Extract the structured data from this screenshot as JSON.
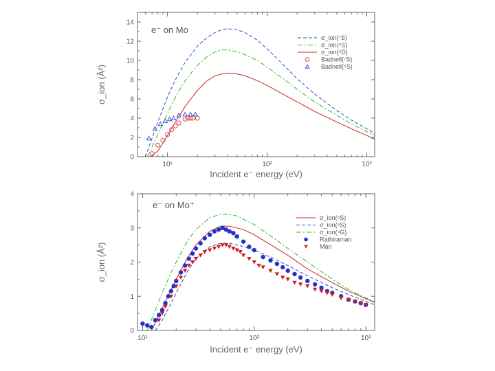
{
  "chart_data": [
    {
      "type": "line",
      "title": "e⁻ on Mo",
      "xlabel": "Incident e⁻ energy (eV)",
      "ylabel": "σ_ion (Å²)",
      "xscale": "log",
      "xlim": [
        5,
        1200
      ],
      "ylim": [
        0,
        15
      ],
      "yticks": [
        0,
        2,
        4,
        6,
        8,
        10,
        12,
        14
      ],
      "ytick_labels": [
        "0",
        "2",
        "4",
        "6",
        "8",
        "10",
        "12",
        "14"
      ],
      "xticks": [
        10,
        100,
        1000
      ],
      "xtick_labels": [
        "10¹",
        "10²",
        "10³"
      ],
      "legend_position": "top-right",
      "series": [
        {
          "name": "σ_ion(⁷S)",
          "style": "dash",
          "color": "#3344cc",
          "x": [
            6,
            7,
            8,
            9,
            10,
            12,
            15,
            20,
            25,
            30,
            35,
            40,
            50,
            60,
            80,
            100,
            150,
            200,
            300,
            500,
            700,
            1000,
            1200
          ],
          "y": [
            0,
            1.9,
            3.6,
            5.0,
            6.2,
            8.0,
            9.8,
            11.5,
            12.4,
            12.9,
            13.2,
            13.3,
            13.2,
            12.9,
            12.1,
            11.2,
            9.4,
            8.1,
            6.5,
            4.8,
            3.8,
            2.9,
            2.4
          ]
        },
        {
          "name": "σ_ion(⁵S)",
          "style": "dashdot",
          "color": "#22bb22",
          "x": [
            6.3,
            7,
            8,
            9,
            10,
            12,
            15,
            20,
            25,
            30,
            35,
            40,
            50,
            60,
            80,
            100,
            150,
            200,
            300,
            500,
            700,
            1000,
            1200
          ],
          "y": [
            0,
            1.0,
            2.3,
            3.5,
            4.5,
            6.2,
            7.9,
            9.5,
            10.4,
            10.9,
            11.1,
            11.1,
            10.9,
            10.6,
            10.0,
            9.3,
            8.0,
            7.0,
            5.7,
            4.3,
            3.4,
            2.6,
            2.2
          ]
        },
        {
          "name": "σ_ion(⁵D)",
          "style": "solid",
          "color": "#cc2222",
          "x": [
            6.8,
            8,
            9,
            10,
            12,
            15,
            20,
            25,
            30,
            35,
            40,
            50,
            60,
            80,
            100,
            150,
            200,
            300,
            500,
            700,
            1000,
            1200
          ],
          "y": [
            0,
            0.6,
            1.4,
            2.2,
            3.6,
            5.2,
            6.9,
            7.9,
            8.4,
            8.6,
            8.7,
            8.6,
            8.4,
            7.9,
            7.4,
            6.4,
            5.7,
            4.7,
            3.6,
            2.9,
            2.2,
            1.8
          ]
        },
        {
          "name": "Badnell(⁷S)",
          "style": "marker-circle",
          "color": "#dd4444",
          "x": [
            7,
            8,
            9,
            10,
            11,
            12,
            13,
            15,
            16,
            17,
            18,
            20
          ],
          "y": [
            0.3,
            1.2,
            1.7,
            2.3,
            2.8,
            3.2,
            3.5,
            3.9,
            4.0,
            4.0,
            4.0,
            4.0
          ]
        },
        {
          "name": "Badnell(⁵S)",
          "style": "marker-triangle",
          "color": "#4455cc",
          "x": [
            6.5,
            7.5,
            8.5,
            9.5,
            10.5,
            11.5,
            13,
            15,
            17,
            19
          ],
          "y": [
            1.9,
            2.9,
            3.4,
            3.7,
            3.9,
            4.0,
            4.3,
            4.4,
            4.4,
            4.4
          ]
        }
      ]
    },
    {
      "type": "line",
      "title": "e⁻ on Mo⁺",
      "xlabel": "Incident e⁻ energy (eV)",
      "ylabel": "σ_ion (Å²)",
      "xscale": "log",
      "xlim": [
        9,
        1200
      ],
      "ylim": [
        0,
        4
      ],
      "yticks": [
        0,
        1,
        2,
        3,
        4
      ],
      "ytick_labels": [
        "0",
        "1",
        "2",
        "3",
        "4"
      ],
      "xticks": [
        10,
        100,
        1000
      ],
      "xtick_labels": [
        "10¹",
        "10²",
        "10³"
      ],
      "legend_position": "top-right",
      "series": [
        {
          "name": "σ_ion(⁶S)",
          "style": "solid",
          "color": "#cc2222",
          "x": [
            12,
            14,
            16,
            18,
            20,
            25,
            30,
            40,
            50,
            60,
            70,
            80,
            100,
            150,
            200,
            300,
            500,
            700,
            1000,
            1200
          ],
          "y": [
            0,
            0.45,
            0.85,
            1.2,
            1.5,
            2.1,
            2.5,
            2.9,
            3.05,
            3.05,
            3.0,
            2.95,
            2.8,
            2.45,
            2.2,
            1.8,
            1.4,
            1.15,
            0.93,
            0.82
          ]
        },
        {
          "name": "σ_ion(⁸S)",
          "style": "dash",
          "color": "#3344cc",
          "x": [
            13,
            15,
            18,
            20,
            25,
            30,
            40,
            50,
            60,
            70,
            80,
            100,
            150,
            200,
            300,
            500,
            700,
            1000,
            1200
          ],
          "y": [
            0,
            0.3,
            0.8,
            1.1,
            1.7,
            2.1,
            2.45,
            2.55,
            2.55,
            2.5,
            2.45,
            2.35,
            2.1,
            1.9,
            1.6,
            1.25,
            1.05,
            0.85,
            0.75
          ]
        },
        {
          "name": "σ_ion(⁴G)",
          "style": "dashdot",
          "color": "#22bb22",
          "x": [
            11,
            13,
            15,
            18,
            20,
            25,
            30,
            40,
            50,
            60,
            70,
            80,
            100,
            150,
            200,
            300,
            500,
            700,
            1000,
            1200
          ],
          "y": [
            0,
            0.6,
            1.1,
            1.7,
            2.0,
            2.6,
            2.95,
            3.3,
            3.4,
            3.4,
            3.35,
            3.25,
            3.1,
            2.7,
            2.4,
            2.0,
            1.5,
            1.2,
            0.95,
            0.85
          ]
        },
        {
          "name": "Rathiraman",
          "style": "marker-circle-filled",
          "color": "#2233cc",
          "x": [
            10,
            11,
            12,
            13,
            14,
            15,
            16,
            17,
            18,
            19,
            20,
            22,
            24,
            26,
            28,
            30,
            33,
            36,
            40,
            44,
            48,
            52,
            56,
            60,
            65,
            70,
            80,
            90,
            100,
            120,
            140,
            160,
            180,
            200,
            230,
            260,
            300,
            350,
            400,
            450,
            500,
            600,
            700,
            800,
            900,
            1000
          ],
          "y": [
            0.2,
            0.15,
            0.1,
            0.3,
            0.45,
            0.6,
            0.8,
            1.0,
            1.15,
            1.3,
            1.45,
            1.7,
            1.9,
            2.1,
            2.25,
            2.4,
            2.55,
            2.7,
            2.8,
            2.9,
            2.95,
            3.0,
            2.95,
            2.9,
            2.85,
            2.75,
            2.6,
            2.45,
            2.35,
            2.15,
            2.05,
            1.95,
            1.85,
            1.75,
            1.65,
            1.55,
            1.45,
            1.35,
            1.25,
            1.15,
            1.1,
            1.0,
            0.9,
            0.85,
            0.8,
            0.75
          ]
        },
        {
          "name": "Man",
          "style": "marker-triangle-down-filled",
          "color": "#cc2222",
          "x": [
            14,
            15,
            16,
            18,
            20,
            22,
            24,
            26,
            28,
            30,
            33,
            36,
            40,
            44,
            48,
            52,
            56,
            60,
            65,
            70,
            75,
            80,
            90,
            100,
            110,
            120,
            140,
            160,
            180,
            200,
            230,
            260,
            300,
            350,
            400,
            450,
            500,
            600,
            700,
            800,
            900,
            1000
          ],
          "y": [
            0.3,
            0.5,
            0.7,
            1.0,
            1.3,
            1.55,
            1.75,
            1.9,
            2.0,
            2.1,
            2.2,
            2.3,
            2.35,
            2.4,
            2.45,
            2.5,
            2.5,
            2.45,
            2.4,
            2.35,
            2.3,
            2.2,
            2.1,
            2.0,
            1.9,
            1.85,
            1.75,
            1.65,
            1.55,
            1.5,
            1.4,
            1.35,
            1.3,
            1.2,
            1.15,
            1.1,
            1.05,
            0.95,
            0.9,
            0.85,
            0.8,
            0.75
          ]
        }
      ]
    }
  ]
}
